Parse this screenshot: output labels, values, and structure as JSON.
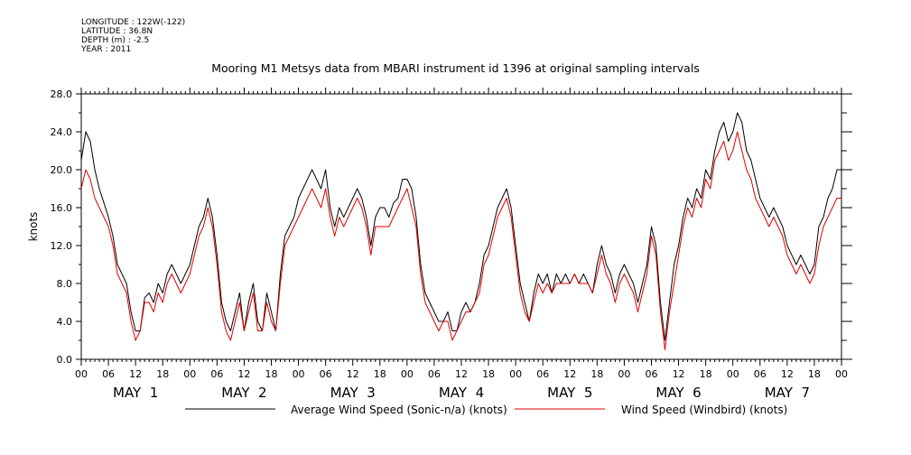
{
  "header": {
    "lines": [
      "LONGITUDE : 122W(-122)",
      "LATITUDE : 36.8N",
      "DEPTH (m) : -2.5",
      "YEAR : 2011"
    ]
  },
  "colors": {
    "series_avg": "#000000",
    "series_windbird": "#e00000",
    "axis": "#000000"
  },
  "chart_data": {
    "type": "line",
    "title": "Mooring M1 Metsys data from MBARI instrument id 1396 at original sampling intervals",
    "ylabel": "knots",
    "xlabel": "",
    "ylim": [
      0,
      28
    ],
    "xlim_hours": [
      0,
      168
    ],
    "x_unit": "hours since MAY 1 00:00, 2011",
    "yticks": [
      "0.0",
      "4.0",
      "8.0",
      "12.0",
      "16.0",
      "20.0",
      "24.0",
      "28.0"
    ],
    "ytick_values": [
      0,
      4,
      8,
      12,
      16,
      20,
      24,
      28
    ],
    "xtick_labels": [
      "00",
      "06",
      "12",
      "18",
      "00",
      "06",
      "12",
      "18",
      "00",
      "06",
      "12",
      "18",
      "00",
      "06",
      "12",
      "18",
      "00",
      "06",
      "12",
      "18",
      "00",
      "06",
      "12",
      "18",
      "00",
      "06",
      "12",
      "18",
      "00"
    ],
    "day_labels": [
      "MAY  1",
      "MAY  2",
      "MAY  3",
      "MAY  4",
      "MAY  5",
      "MAY  6",
      "MAY  7"
    ],
    "legend_placement": "bottom",
    "grid": false,
    "series": [
      {
        "name": "Average Wind Speed (Sonic-n/a) (knots)",
        "x": [
          0,
          1,
          2,
          3,
          4,
          5,
          6,
          7,
          8,
          9,
          10,
          11,
          12,
          13,
          14,
          15,
          16,
          17,
          18,
          19,
          20,
          21,
          22,
          23,
          24,
          25,
          26,
          27,
          28,
          29,
          30,
          31,
          32,
          33,
          34,
          35,
          36,
          37,
          38,
          39,
          40,
          41,
          42,
          43,
          44,
          45,
          46,
          47,
          48,
          49,
          50,
          51,
          52,
          53,
          54,
          55,
          56,
          57,
          58,
          59,
          60,
          61,
          62,
          63,
          64,
          65,
          66,
          67,
          68,
          69,
          70,
          71,
          72,
          73,
          74,
          75,
          76,
          77,
          78,
          79,
          80,
          81,
          82,
          83,
          84,
          85,
          86,
          87,
          88,
          89,
          90,
          91,
          92,
          93,
          94,
          95,
          96,
          97,
          98,
          99,
          100,
          101,
          102,
          103,
          104,
          105,
          106,
          107,
          108,
          109,
          110,
          111,
          112,
          113,
          114,
          115,
          116,
          117,
          118,
          119,
          120,
          121,
          122,
          123,
          124,
          125,
          126,
          127,
          128,
          129,
          130,
          131,
          132,
          133,
          134,
          135,
          136,
          137,
          138,
          139,
          140,
          141,
          142,
          143,
          144,
          145,
          146,
          147,
          148,
          149,
          150,
          151,
          152,
          153,
          154,
          155,
          156,
          157,
          158,
          159,
          160,
          161,
          162,
          163,
          164,
          165,
          166,
          167,
          168
        ],
        "y": [
          21,
          24,
          23,
          20,
          18,
          16.5,
          15,
          13,
          10,
          9,
          8,
          5,
          3,
          3,
          6.5,
          7,
          6,
          8,
          7,
          9,
          10,
          9,
          8,
          9,
          10,
          12,
          14,
          15,
          17,
          15,
          11,
          6,
          4,
          3,
          5,
          7,
          3,
          6,
          8,
          4,
          3,
          7,
          5,
          3,
          9,
          13,
          14,
          15,
          17,
          18,
          19,
          20,
          19,
          18,
          20,
          16,
          14,
          16,
          15,
          16,
          17,
          18,
          17,
          15,
          12,
          15,
          16,
          16,
          15,
          16.5,
          17,
          19,
          19,
          18,
          15,
          10,
          7,
          6,
          5,
          4,
          4,
          5,
          3,
          3,
          5,
          6,
          5,
          6,
          8,
          11,
          12,
          14,
          16,
          17,
          18,
          16,
          12,
          8,
          6,
          4,
          7,
          9,
          8,
          9,
          7,
          9,
          8,
          9,
          8,
          9,
          8,
          9,
          8,
          7,
          10,
          12,
          10,
          9,
          7,
          9,
          10,
          9,
          8,
          6,
          8,
          10,
          14,
          12,
          6,
          2,
          6,
          10,
          12,
          15,
          17,
          16,
          18,
          17,
          20,
          19,
          22,
          24,
          25,
          23,
          24,
          26,
          25,
          22,
          21,
          19,
          17,
          16,
          15,
          16,
          15,
          14,
          12,
          11,
          10,
          11,
          10,
          9,
          10,
          14,
          15,
          17,
          18,
          20,
          20
        ],
        "color": "#000000"
      },
      {
        "name": "Wind Speed (Windbird) (knots)",
        "x": [
          0,
          1,
          2,
          3,
          4,
          5,
          6,
          7,
          8,
          9,
          10,
          11,
          12,
          13,
          14,
          15,
          16,
          17,
          18,
          19,
          20,
          21,
          22,
          23,
          24,
          25,
          26,
          27,
          28,
          29,
          30,
          31,
          32,
          33,
          34,
          35,
          36,
          37,
          38,
          39,
          40,
          41,
          42,
          43,
          44,
          45,
          46,
          47,
          48,
          49,
          50,
          51,
          52,
          53,
          54,
          55,
          56,
          57,
          58,
          59,
          60,
          61,
          62,
          63,
          64,
          65,
          66,
          67,
          68,
          69,
          70,
          71,
          72,
          73,
          74,
          75,
          76,
          77,
          78,
          79,
          80,
          81,
          82,
          83,
          84,
          85,
          86,
          87,
          88,
          89,
          90,
          91,
          92,
          93,
          94,
          95,
          96,
          97,
          98,
          99,
          100,
          101,
          102,
          103,
          104,
          105,
          106,
          107,
          108,
          109,
          110,
          111,
          112,
          113,
          114,
          115,
          116,
          117,
          118,
          119,
          120,
          121,
          122,
          123,
          124,
          125,
          126,
          127,
          128,
          129,
          130,
          131,
          132,
          133,
          134,
          135,
          136,
          137,
          138,
          139,
          140,
          141,
          142,
          143,
          144,
          145,
          146,
          147,
          148,
          149,
          150,
          151,
          152,
          153,
          154,
          155,
          156,
          157,
          158,
          159,
          160,
          161,
          162,
          163,
          164,
          165,
          166,
          167,
          168
        ],
        "y": [
          18,
          20,
          19,
          17,
          16,
          15,
          14,
          12,
          9,
          8,
          7,
          4,
          2,
          3,
          6,
          6,
          5,
          7,
          6,
          8,
          9,
          8,
          7,
          8,
          9,
          11,
          13,
          14,
          16,
          14,
          10,
          5,
          3,
          2,
          4,
          6,
          3,
          5,
          7,
          3,
          3,
          6,
          4,
          3,
          8,
          12,
          13,
          14,
          15,
          16,
          17,
          18,
          17,
          16,
          18,
          15,
          13,
          15,
          14,
          15,
          16,
          17,
          16,
          14,
          11,
          14,
          14,
          14,
          14,
          15,
          16,
          17,
          18,
          16,
          14,
          9,
          6,
          5,
          4,
          3,
          4,
          4,
          2,
          3,
          4,
          5,
          5,
          6,
          7,
          10,
          11,
          13,
          15,
          16,
          17,
          15,
          11,
          7,
          5,
          4,
          6,
          8,
          7,
          8,
          7,
          8,
          8,
          8,
          8,
          9,
          8,
          8,
          8,
          7,
          9,
          11,
          9,
          8,
          6,
          8,
          9,
          8,
          7,
          5,
          7,
          9,
          13,
          11,
          5,
          1,
          5,
          8,
          11,
          14,
          16,
          15,
          17,
          16,
          19,
          18,
          21,
          22,
          23,
          21,
          22,
          24,
          22,
          20,
          19,
          17,
          16,
          15,
          14,
          15,
          14,
          13,
          11,
          10,
          9,
          10,
          9,
          8,
          9,
          12,
          14,
          15,
          16,
          17,
          17
        ],
        "color": "#e00000"
      }
    ]
  }
}
